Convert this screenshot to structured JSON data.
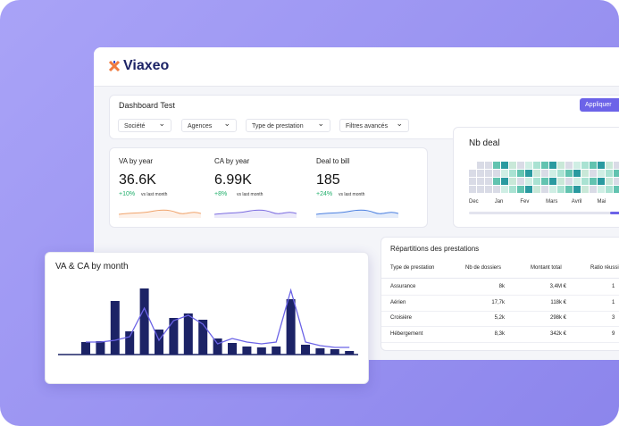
{
  "app": {
    "logo": "Viaxeo"
  },
  "filters": {
    "title": "Dashboard Test",
    "button": "Appliquer",
    "dropdowns": [
      "Société",
      "Agences",
      "Type de prestation",
      "Filtres avancés"
    ]
  },
  "kpis": [
    {
      "label": "VA by year",
      "value": "36.6K",
      "change": "+10%",
      "note": "vs last month"
    },
    {
      "label": "CA by year",
      "value": "6.99K",
      "change": "+8%",
      "note": "vs last month"
    },
    {
      "label": "Deal to bill",
      "value": "185",
      "change": "+24%",
      "note": "vs last month"
    }
  ],
  "nb_deal": {
    "title": "Nb deal",
    "months": [
      "Dec",
      "Jan",
      "Fev",
      "Mars",
      "Avril",
      "Mai"
    ]
  },
  "table": {
    "title": "Répartitions des prestations",
    "headers": [
      "Type de prestation",
      "Nb de dossiers",
      "Montant total",
      "Ratio réussi"
    ],
    "rows": [
      [
        "Assurance",
        "8k",
        "3,4M €",
        "1"
      ],
      [
        "Aérien",
        "17,7k",
        "118k €",
        "1"
      ],
      [
        "Croisière",
        "5,2k",
        "298k €",
        "3"
      ],
      [
        "Hébergement",
        "8,3k",
        "342k €",
        "9"
      ]
    ]
  },
  "chart_data": {
    "type": "bar",
    "title": "VA & CA by month",
    "ylim": [
      0,
      80
    ],
    "series": [
      {
        "type": "bar",
        "color": "#1c2366",
        "values": [
          14,
          15,
          60,
          26,
          74,
          28,
          41,
          46,
          39,
          18,
          13,
          9,
          8,
          9,
          62,
          11,
          7,
          6,
          4
        ]
      },
      {
        "type": "line",
        "color": "#6b63e6",
        "values": [
          14,
          14,
          16,
          20,
          52,
          16,
          38,
          44,
          34,
          12,
          18,
          14,
          12,
          14,
          72,
          14,
          10,
          8,
          8
        ]
      }
    ]
  }
}
